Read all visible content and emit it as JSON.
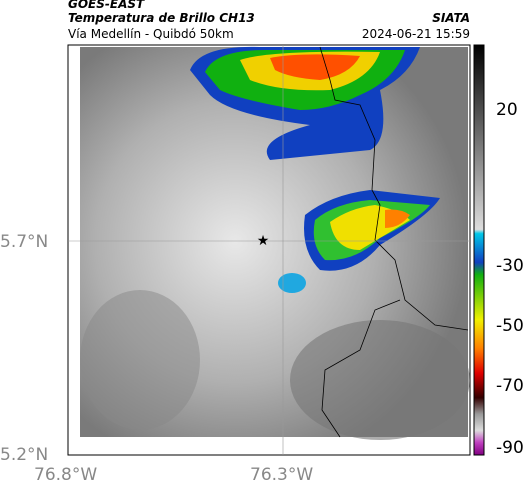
{
  "header": {
    "source": "GOES-EAST",
    "title": "Temperatura de Brillo CH13",
    "subtitle": "Vía Medellín - Quibdó 50km",
    "agency": "SIATA",
    "datetime": "2024-06-21 15:59"
  },
  "map": {
    "lat_labels": [
      "5.7°N",
      "5.2°N"
    ],
    "lon_labels": [
      "76.8°W",
      "76.3°W"
    ]
  },
  "colorbar": {
    "tick_labels": [
      "20",
      "-30",
      "-50",
      "-70",
      "-90"
    ]
  }
}
